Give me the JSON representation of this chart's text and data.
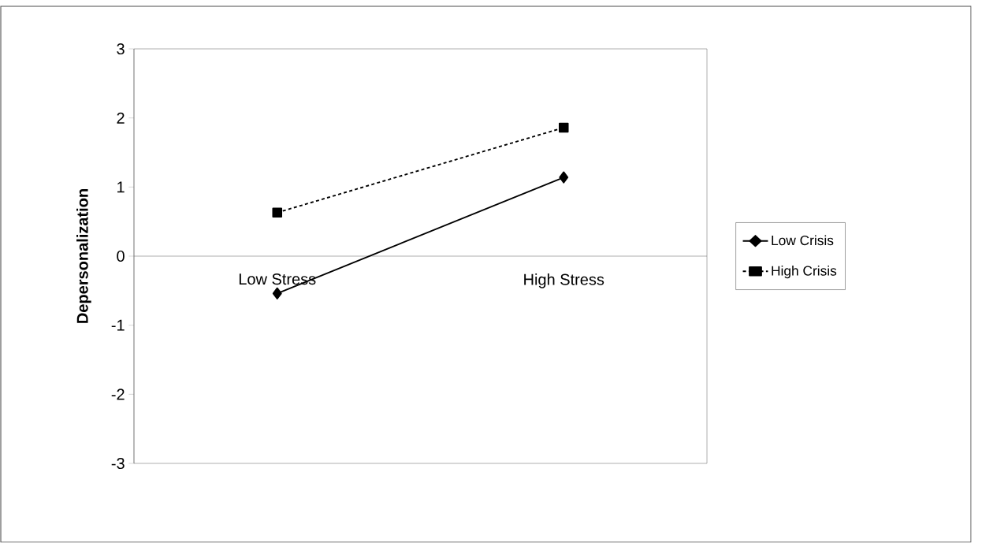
{
  "chart_data": {
    "type": "line",
    "ylabel": "Depersonalization",
    "categories": [
      "Low Stress",
      "High Stress"
    ],
    "series": [
      {
        "name": "Low Crisis",
        "color": "#000000",
        "values": [
          -0.54,
          1.14
        ],
        "marker": "diamond",
        "line_style": "solid"
      },
      {
        "name": "High Crisis",
        "color": "#000000",
        "values": [
          0.63,
          1.86
        ],
        "marker": "square",
        "line_style": "dashed"
      }
    ],
    "ylim": [
      -3,
      3
    ],
    "yticks": [
      -3,
      -2,
      -1,
      0,
      1,
      2,
      3
    ],
    "legend": "right",
    "grid": false
  }
}
